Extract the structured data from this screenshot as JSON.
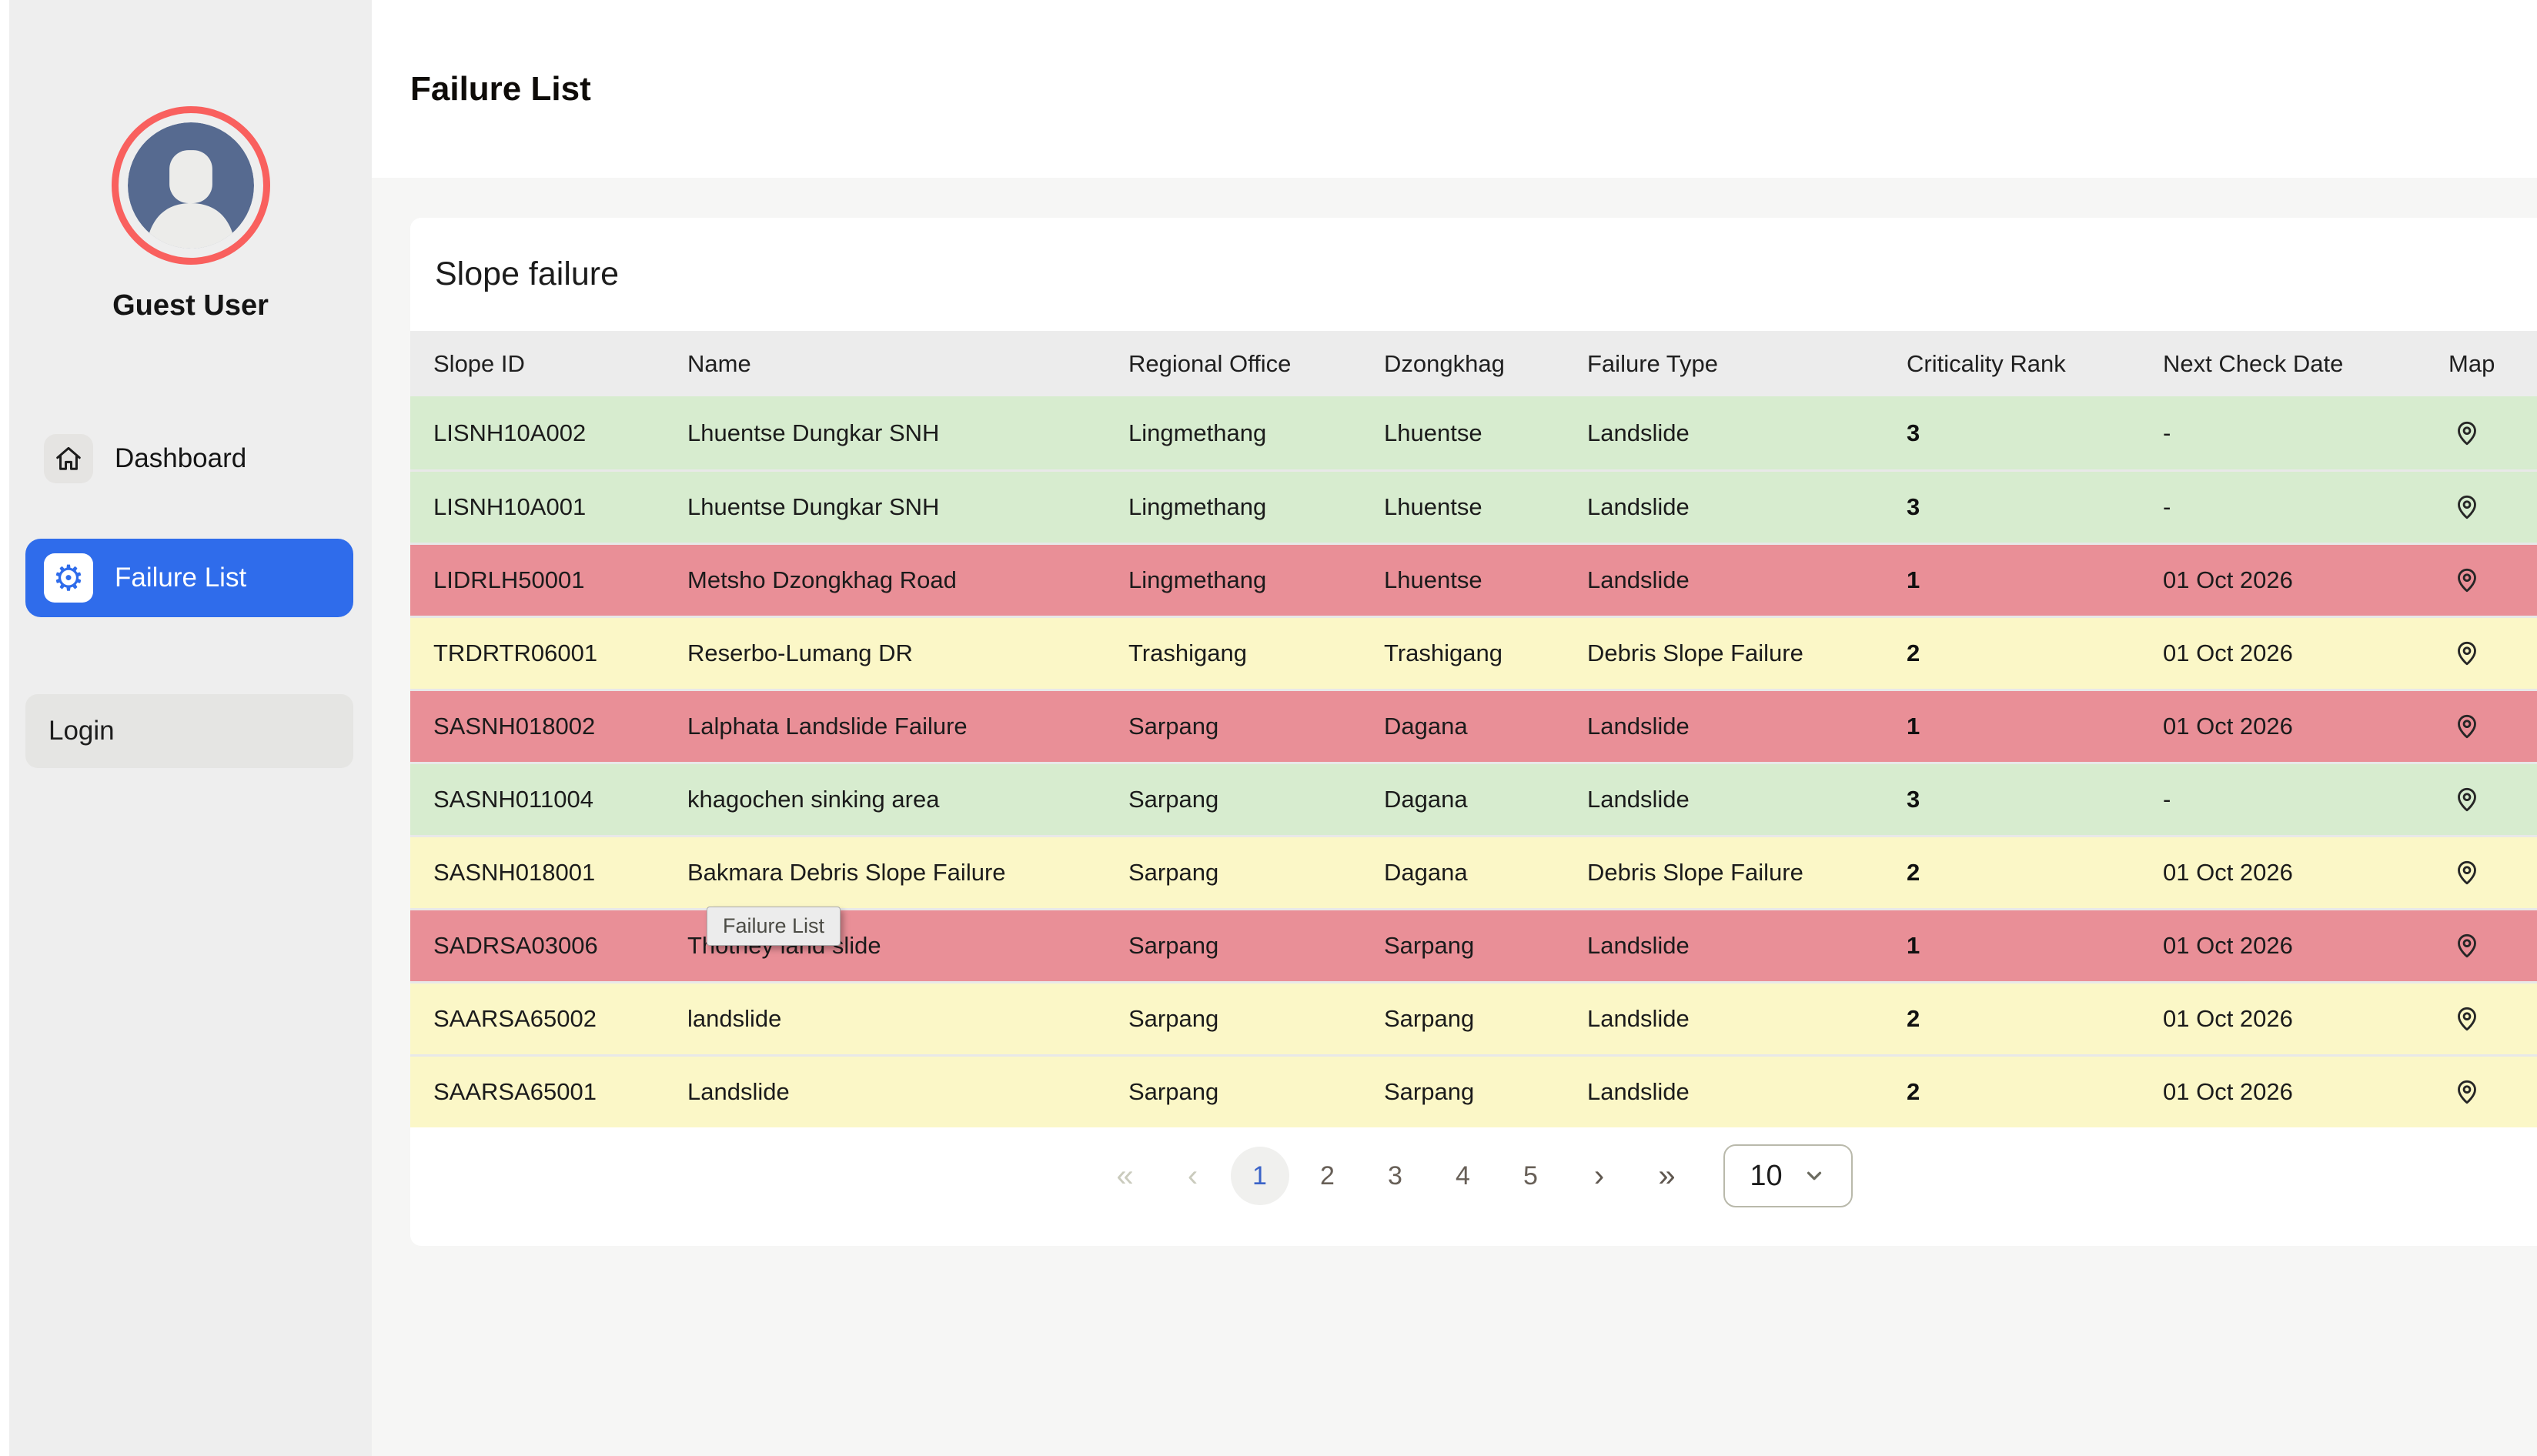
{
  "colors": {
    "accent-blue": "#2f6ceb",
    "avatar-ring": "#f9605e",
    "row-green": "#d7eccf",
    "row-red": "#e98f97",
    "row-yellow": "#fbf7c7"
  },
  "sidebar": {
    "user_name": "Guest User",
    "avatar_icon": "person-icon",
    "items": [
      {
        "label": "Dashboard",
        "icon": "home-icon"
      },
      {
        "label": "Failure List",
        "icon": "gear-icon",
        "active": true
      }
    ],
    "login_label": "Login"
  },
  "header": {
    "title": "Failure List"
  },
  "card": {
    "title": "Slope failure"
  },
  "table": {
    "columns": [
      "Slope ID",
      "Name",
      "Regional Office",
      "Dzongkhag",
      "Failure Type",
      "Criticality Rank",
      "Next Check Date",
      "Map"
    ],
    "map_icon": "map-pin-icon",
    "rows": [
      {
        "slope_id": "LISNH10A002",
        "name": "Lhuentse Dungkar SNH",
        "regional_office": "Lingmethang",
        "dzongkhag": "Lhuentse",
        "failure_type": "Landslide",
        "criticality_rank": "3",
        "next_check_date": "-",
        "severity": "green"
      },
      {
        "slope_id": "LISNH10A001",
        "name": "Lhuentse Dungkar SNH",
        "regional_office": "Lingmethang",
        "dzongkhag": "Lhuentse",
        "failure_type": "Landslide",
        "criticality_rank": "3",
        "next_check_date": "-",
        "severity": "green"
      },
      {
        "slope_id": "LIDRLH50001",
        "name": "Metsho Dzongkhag Road",
        "regional_office": "Lingmethang",
        "dzongkhag": "Lhuentse",
        "failure_type": "Landslide",
        "criticality_rank": "1",
        "next_check_date": "01 Oct 2026",
        "severity": "red"
      },
      {
        "slope_id": "TRDRTR06001",
        "name": "Reserbo-Lumang DR",
        "regional_office": "Trashigang",
        "dzongkhag": "Trashigang",
        "failure_type": "Debris Slope Failure",
        "criticality_rank": "2",
        "next_check_date": "01 Oct 2026",
        "severity": "yellow"
      },
      {
        "slope_id": "SASNH018002",
        "name": "Lalphata Landslide Failure",
        "regional_office": "Sarpang",
        "dzongkhag": "Dagana",
        "failure_type": "Landslide",
        "criticality_rank": "1",
        "next_check_date": "01 Oct 2026",
        "severity": "red"
      },
      {
        "slope_id": "SASNH011004",
        "name": "khagochen sinking area",
        "regional_office": "Sarpang",
        "dzongkhag": "Dagana",
        "failure_type": "Landslide",
        "criticality_rank": "3",
        "next_check_date": "-",
        "severity": "green"
      },
      {
        "slope_id": "SASNH018001",
        "name": "Bakmara Debris Slope Failure",
        "regional_office": "Sarpang",
        "dzongkhag": "Dagana",
        "failure_type": "Debris Slope Failure",
        "criticality_rank": "2",
        "next_check_date": "01 Oct 2026",
        "severity": "yellow"
      },
      {
        "slope_id": "SADRSA03006",
        "name": "Thotney land slide",
        "regional_office": "Sarpang",
        "dzongkhag": "Sarpang",
        "failure_type": "Landslide",
        "criticality_rank": "1",
        "next_check_date": "01 Oct 2026",
        "severity": "red"
      },
      {
        "slope_id": "SAARSA65002",
        "name": "landslide",
        "regional_office": "Sarpang",
        "dzongkhag": "Sarpang",
        "failure_type": "Landslide",
        "criticality_rank": "2",
        "next_check_date": "01 Oct 2026",
        "severity": "yellow"
      },
      {
        "slope_id": "SAARSA65001",
        "name": "Landslide",
        "regional_office": "Sarpang",
        "dzongkhag": "Sarpang",
        "failure_type": "Landslide",
        "criticality_rank": "2",
        "next_check_date": "01 Oct 2026",
        "severity": "yellow"
      }
    ]
  },
  "tooltip": {
    "text": "Failure List"
  },
  "pagination": {
    "first": "«",
    "prev": "‹",
    "pages": [
      "1",
      "2",
      "3",
      "4",
      "5"
    ],
    "active_page": "1",
    "next": "›",
    "last": "»",
    "page_size": "10",
    "page_size_chevron": "chevron-down-icon"
  }
}
